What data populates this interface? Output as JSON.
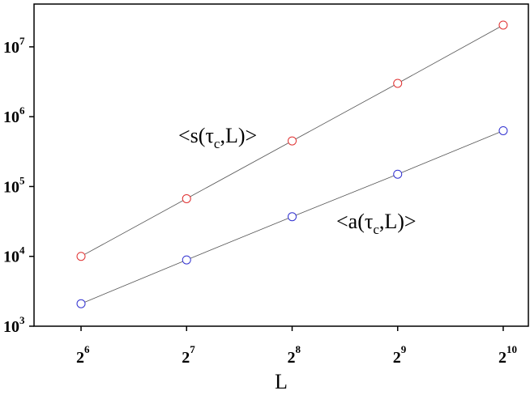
{
  "chart_data": {
    "type": "line",
    "log_x_base": 2,
    "log_y_base": 10,
    "x": [
      64,
      128,
      256,
      512,
      1024
    ],
    "series": [
      {
        "color": "#e03030",
        "values": [
          10000,
          67000,
          450000,
          3000000,
          20500000
        ]
      },
      {
        "color": "#3030d0",
        "values": [
          2100,
          8900,
          37000,
          150000,
          630000
        ]
      }
    ],
    "xlim": [
      47,
      1208
    ],
    "ylim": [
      1000,
      41000000
    ],
    "xticks": [
      {
        "value": 64,
        "label": "2",
        "sup": "6"
      },
      {
        "value": 128,
        "label": "2",
        "sup": "7"
      },
      {
        "value": 256,
        "label": "2",
        "sup": "8"
      },
      {
        "value": 512,
        "label": "2",
        "sup": "9"
      },
      {
        "value": 1024,
        "label": "2",
        "sup": "10"
      }
    ],
    "yticks": [
      {
        "value": 1000,
        "label": "10",
        "sup": "3"
      },
      {
        "value": 10000,
        "label": "10",
        "sup": "4"
      },
      {
        "value": 100000,
        "label": "10",
        "sup": "5"
      },
      {
        "value": 1000000,
        "label": "10",
        "sup": "6"
      },
      {
        "value": 10000000,
        "label": "10",
        "sup": "7"
      }
    ],
    "xlabel": "L",
    "annotations": [
      {
        "text": "<s(τ",
        "sub": "c",
        "rest": ",L)>"
      },
      {
        "text": "<a(τ",
        "sub": "c",
        "rest": ",L)>"
      }
    ]
  }
}
